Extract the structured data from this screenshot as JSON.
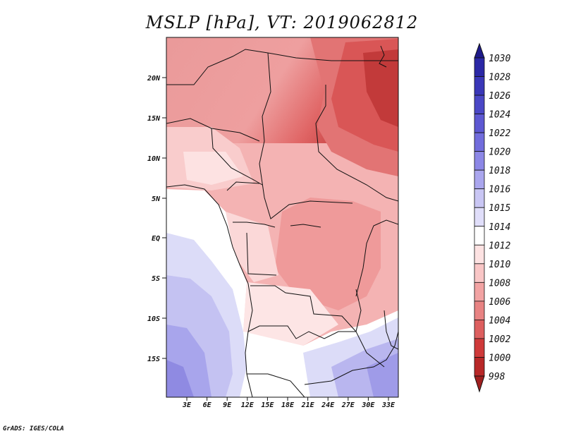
{
  "title": "MSLP [hPa], VT: 2019062812",
  "credit": "GrADS: IGES/COLA",
  "axes": {
    "lat_labels": [
      "20N",
      "15N",
      "10N",
      "5N",
      "EQ",
      "5S",
      "10S",
      "15S"
    ],
    "lon_labels": [
      "3E",
      "6E",
      "9E",
      "12E",
      "15E",
      "18E",
      "21E",
      "24E",
      "27E",
      "30E",
      "33E"
    ]
  },
  "colorbar": {
    "labels": [
      "1030",
      "1028",
      "1026",
      "1024",
      "1022",
      "1020",
      "1018",
      "1016",
      "1015",
      "1014",
      "1012",
      "1010",
      "1008",
      "1006",
      "1004",
      "1002",
      "1000",
      "998"
    ],
    "colors": [
      "#1e1a8a",
      "#2b28a6",
      "#3a37b8",
      "#4a47c6",
      "#5d58d2",
      "#716cdc",
      "#8c87e6",
      "#aaa6ee",
      "#c9c6f4",
      "#e0defa",
      "#ffffff",
      "#fde2e2",
      "#f9c6c6",
      "#f2a3a3",
      "#e88383",
      "#dd5f5f",
      "#cf3a3a",
      "#b82828",
      "#a01f1f"
    ]
  },
  "legend_placement": "right"
}
